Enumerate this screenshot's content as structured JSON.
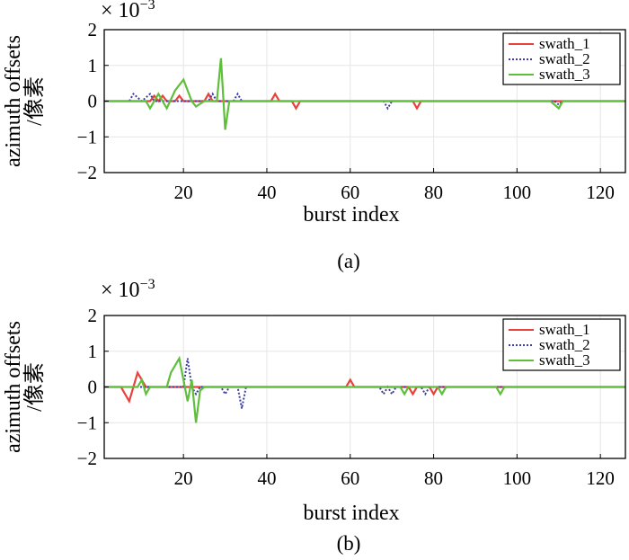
{
  "colors": {
    "swath_1": "#e8413c",
    "swath_2": "#3c3ca6",
    "swath_3": "#5fbf3a"
  },
  "chart_data": [
    {
      "type": "line",
      "caption": "(a)",
      "xlabel": "burst index",
      "ylabel": "azimuth offsets /像素",
      "y_multiplier": "× 10^-3",
      "xlim": [
        1,
        126
      ],
      "ylim": [
        -2,
        2
      ],
      "xticks": [
        20,
        40,
        60,
        80,
        100,
        120
      ],
      "yticks": [
        2,
        1,
        0,
        -1,
        -2
      ],
      "grid": true,
      "legend_position": "top-right",
      "series": [
        {
          "name": "swath_1",
          "style": "solid",
          "points": [
            [
              1,
              0
            ],
            [
              12,
              0
            ],
            [
              13,
              0.15
            ],
            [
              14,
              0
            ],
            [
              15,
              0.15
            ],
            [
              16,
              0
            ],
            [
              18,
              0
            ],
            [
              19,
              0.15
            ],
            [
              20,
              0
            ],
            [
              25,
              0
            ],
            [
              26,
              0.2
            ],
            [
              27,
              0
            ],
            [
              41,
              0
            ],
            [
              42,
              0.2
            ],
            [
              43,
              0
            ],
            [
              46,
              0
            ],
            [
              47,
              -0.2
            ],
            [
              48,
              0
            ],
            [
              75,
              0
            ],
            [
              76,
              -0.2
            ],
            [
              77,
              0
            ],
            [
              126,
              0
            ]
          ]
        },
        {
          "name": "swath_2",
          "style": "dotted",
          "points": [
            [
              1,
              0
            ],
            [
              7,
              0
            ],
            [
              8,
              0.2
            ],
            [
              9,
              0.1
            ],
            [
              10,
              0
            ],
            [
              11,
              0.1
            ],
            [
              12,
              0.2
            ],
            [
              13,
              0
            ],
            [
              26,
              0
            ],
            [
              27,
              0.2
            ],
            [
              28,
              0
            ],
            [
              32,
              0
            ],
            [
              33,
              0.2
            ],
            [
              34,
              0
            ],
            [
              68,
              0
            ],
            [
              69,
              -0.2
            ],
            [
              70,
              0
            ],
            [
              109,
              0
            ],
            [
              110,
              -0.1
            ],
            [
              111,
              0
            ],
            [
              126,
              0
            ]
          ]
        },
        {
          "name": "swath_3",
          "style": "solid",
          "points": [
            [
              1,
              0
            ],
            [
              11,
              0
            ],
            [
              12,
              -0.2
            ],
            [
              14,
              0.2
            ],
            [
              16,
              -0.2
            ],
            [
              18,
              0.3
            ],
            [
              20,
              0.6
            ],
            [
              22,
              0
            ],
            [
              23,
              -0.15
            ],
            [
              25,
              0
            ],
            [
              28,
              0
            ],
            [
              29,
              1.2
            ],
            [
              30,
              -0.8
            ],
            [
              31,
              0
            ],
            [
              108,
              0
            ],
            [
              110,
              -0.2
            ],
            [
              111,
              0
            ],
            [
              126,
              0
            ]
          ]
        }
      ]
    },
    {
      "type": "line",
      "caption": "(b)",
      "xlabel": "burst index",
      "ylabel": "azimuth offsets /像素",
      "y_multiplier": "× 10^-3",
      "xlim": [
        1,
        126
      ],
      "ylim": [
        -2,
        2
      ],
      "xticks": [
        20,
        40,
        60,
        80,
        100,
        120
      ],
      "yticks": [
        2,
        1,
        0,
        -1,
        -2
      ],
      "grid": true,
      "legend_position": "top-right",
      "series": [
        {
          "name": "swath_1",
          "style": "solid",
          "points": [
            [
              1,
              0
            ],
            [
              5,
              0
            ],
            [
              7,
              -0.4
            ],
            [
              9,
              0.4
            ],
            [
              11,
              0
            ],
            [
              59,
              0
            ],
            [
              60,
              0.2
            ],
            [
              61,
              0
            ],
            [
              74,
              0
            ],
            [
              75,
              -0.2
            ],
            [
              76,
              0
            ],
            [
              79,
              0
            ],
            [
              80,
              -0.2
            ],
            [
              81,
              0
            ],
            [
              126,
              0
            ]
          ]
        },
        {
          "name": "swath_2",
          "style": "dotted",
          "points": [
            [
              1,
              0
            ],
            [
              20,
              0
            ],
            [
              21,
              0.8
            ],
            [
              22,
              0
            ],
            [
              23,
              -0.2
            ],
            [
              24,
              0
            ],
            [
              29,
              0
            ],
            [
              30,
              -0.2
            ],
            [
              31,
              0
            ],
            [
              33,
              0
            ],
            [
              34,
              -0.6
            ],
            [
              35,
              0
            ],
            [
              67,
              0
            ],
            [
              68,
              -0.2
            ],
            [
              69,
              0
            ],
            [
              70,
              -0.2
            ],
            [
              71,
              0
            ],
            [
              77,
              0
            ],
            [
              78,
              -0.2
            ],
            [
              79,
              0
            ],
            [
              126,
              0
            ]
          ]
        },
        {
          "name": "swath_3",
          "style": "solid",
          "points": [
            [
              1,
              0
            ],
            [
              9,
              0
            ],
            [
              10,
              0.2
            ],
            [
              11,
              -0.2
            ],
            [
              12,
              0
            ],
            [
              16,
              0
            ],
            [
              17,
              0.4
            ],
            [
              19,
              0.8
            ],
            [
              21,
              -0.4
            ],
            [
              22,
              0.2
            ],
            [
              23,
              -1.0
            ],
            [
              24,
              -0.1
            ],
            [
              25,
              0
            ],
            [
              72,
              0
            ],
            [
              73,
              -0.2
            ],
            [
              74,
              0
            ],
            [
              81,
              0
            ],
            [
              82,
              -0.2
            ],
            [
              83,
              0
            ],
            [
              95,
              0
            ],
            [
              96,
              -0.2
            ],
            [
              97,
              0
            ],
            [
              126,
              0
            ]
          ]
        }
      ]
    }
  ]
}
